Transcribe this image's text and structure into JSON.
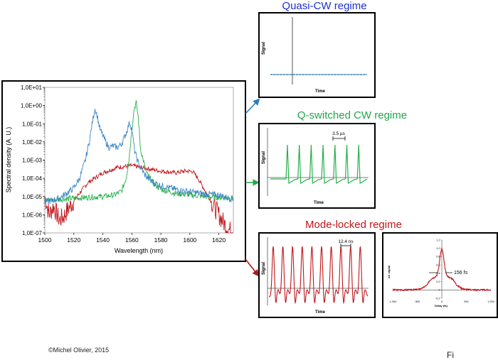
{
  "copyright": "©Michel Olivier, 2015",
  "page_fragment": "Fi",
  "colors": {
    "blue_trace": "#3b86c6",
    "red_trace": "#c0161c",
    "green_trace": "#27b04b",
    "quasi_title": "#1f2fd0",
    "qswitch_title": "#1fa84a",
    "modelocked_title": "#c0161c",
    "arrow_blue": "#2a7abf",
    "arrow_green": "#22a84a",
    "arrow_red": "#b01818"
  },
  "chart_data": [
    {
      "id": "spectrum",
      "type": "line",
      "title": "",
      "xlabel": "Wavelength (nm)",
      "ylabel": "Spectral density (A. U.)",
      "xlim": [
        1500,
        1630
      ],
      "ylim": [
        1e-07,
        10
      ],
      "yscale": "log",
      "x_ticks": [
        1500,
        1520,
        1540,
        1560,
        1580,
        1600,
        1620
      ],
      "y_ticks": [
        "1,0E-07",
        "1,0E-06",
        "1,0E-05",
        "1,0E-04",
        "1,0E-03",
        "1,0E-02",
        "1,0E-01",
        "1,0E+00",
        "1,0E+01"
      ],
      "grid": false,
      "series": [
        {
          "color": "blue",
          "x": [
            1500,
            1505,
            1510,
            1515,
            1520,
            1524,
            1528,
            1531,
            1533,
            1534.5,
            1536,
            1538,
            1541,
            1544,
            1547,
            1550,
            1553,
            1556,
            1558.5,
            1560,
            1562,
            1565,
            1570,
            1575,
            1580,
            1590,
            1600,
            1610,
            1620,
            1625,
            1630
          ],
          "y": [
            5e-06,
            6e-06,
            8e-06,
            1.5e-05,
            3e-05,
            0.0001,
            0.001,
            0.015,
            0.15,
            0.7,
            0.3,
            0.05,
            0.015,
            0.005,
            0.006,
            0.005,
            0.008,
            0.03,
            0.12,
            0.05,
            0.003,
            0.0005,
            0.00012,
            6e-05,
            4e-05,
            2.5e-05,
            1.8e-05,
            1.4e-05,
            1.2e-05,
            9e-06,
            7e-06
          ]
        },
        {
          "color": "red",
          "x": [
            1500,
            1503,
            1506,
            1510,
            1513,
            1516,
            1520,
            1525,
            1530,
            1540,
            1550,
            1560,
            1570,
            1580,
            1590,
            1597,
            1602,
            1606,
            1610,
            1615,
            1620,
            1624,
            1627,
            1630
          ],
          "y": [
            1e-05,
            1e-06,
            3e-06,
            5e-07,
            8e-07,
            2e-06,
            6e-06,
            2e-05,
            6e-05,
            0.0002,
            0.0004,
            0.0005,
            0.00035,
            0.00025,
            0.0002,
            0.00025,
            0.00024,
            9e-05,
            2.5e-05,
            5e-06,
            1e-06,
            3e-07,
            1.5e-07,
            1e-07
          ]
        },
        {
          "color": "green",
          "x": [
            1500,
            1510,
            1520,
            1530,
            1540,
            1548,
            1553,
            1556,
            1558,
            1560,
            1561.5,
            1563,
            1564.5,
            1566,
            1570,
            1575,
            1580,
            1590,
            1600,
            1610,
            1620,
            1630
          ],
          "y": [
            6e-06,
            7e-06,
            8e-06,
            9e-06,
            1e-05,
            1.2e-05,
            2e-05,
            0.0001,
            0.001,
            0.05,
            0.6,
            1.5,
            0.2,
            0.004,
            0.0002,
            5e-05,
            2.5e-05,
            1.5e-05,
            1.2e-05,
            1e-05,
            9e-06,
            8e-06
          ]
        }
      ]
    },
    {
      "id": "quasi_cw",
      "type": "line",
      "title": "Quasi-CW regime",
      "xlabel": "Time",
      "ylabel": "Signal",
      "description_values": {
        "baseline_level": 0
      }
    },
    {
      "id": "q_switched",
      "type": "line",
      "title": "Q-switched  CW regime",
      "xlabel": "Time",
      "ylabel": "Signal",
      "annotation": "3.5 µs",
      "pulse_count": 7
    },
    {
      "id": "mode_locked",
      "type": "line",
      "title": "Mode-locked regime",
      "xlabel": "Time",
      "ylabel": "Signal",
      "annotation": "12.4 ns",
      "pulse_count": 10
    },
    {
      "id": "autocorrelation",
      "type": "line",
      "title": "",
      "xlabel": "Delay (fs)",
      "ylabel": "AC signal",
      "annotation": "156 fs",
      "xlim": [
        -1000,
        1000
      ],
      "ylim": [
        -0.2,
        1.2
      ],
      "x_ticks": [
        "-1 000",
        "-500",
        "0",
        "500",
        "1 000"
      ],
      "y_ticks": [
        "-0.2",
        "0",
        "0.2",
        "0.4",
        "0.6",
        "0.8",
        "1.0",
        "1.2"
      ],
      "x": [
        -1000,
        -700,
        -500,
        -400,
        -300,
        -250,
        -200,
        -150,
        -100,
        -60,
        -30,
        0,
        30,
        60,
        100,
        150,
        200,
        250,
        300,
        400,
        500,
        700,
        1000
      ],
      "y": [
        0,
        0,
        0.01,
        0.04,
        0.12,
        0.22,
        0.28,
        0.3,
        0.35,
        0.55,
        0.85,
        1.0,
        0.85,
        0.55,
        0.35,
        0.3,
        0.28,
        0.22,
        0.12,
        0.04,
        0.01,
        0,
        0
      ]
    }
  ]
}
